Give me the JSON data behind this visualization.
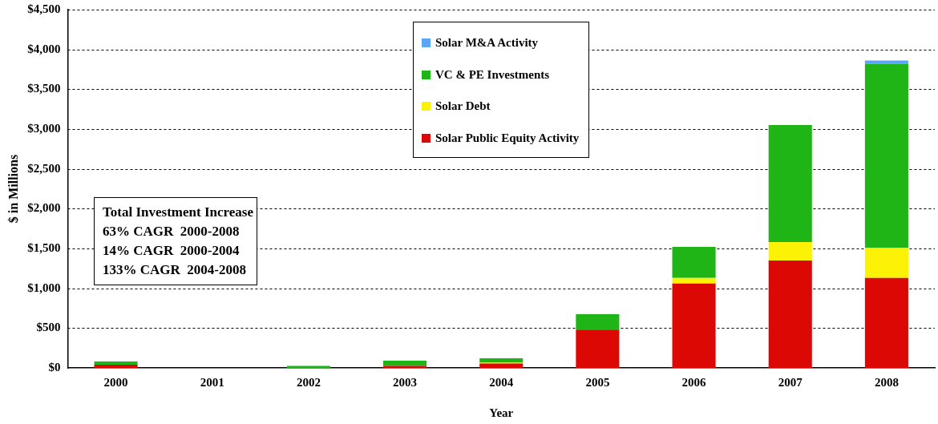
{
  "chart_data": {
    "type": "bar",
    "stacked": true,
    "xlabel": "Year",
    "ylabel": "$ in Millions",
    "categories": [
      "2000",
      "2001",
      "2002",
      "2003",
      "2004",
      "2005",
      "2006",
      "2007",
      "2008"
    ],
    "series": [
      {
        "name": "Solar Public Equity Activity",
        "color": "#dc0804",
        "values": [
          40,
          0,
          0,
          25,
          55,
          480,
          1060,
          1350,
          1130
        ]
      },
      {
        "name": "Solar Debt",
        "color": "#fbf205",
        "values": [
          0,
          0,
          0,
          0,
          10,
          0,
          70,
          230,
          380
        ]
      },
      {
        "name": "VC & PE Investments",
        "color": "#1fb517",
        "values": [
          40,
          0,
          25,
          65,
          55,
          195,
          390,
          1470,
          2310
        ]
      },
      {
        "name": "Solar M&A Activity",
        "color": "#5aa5f5",
        "values": [
          0,
          0,
          0,
          0,
          0,
          0,
          0,
          0,
          40
        ]
      }
    ],
    "ylim": [
      0,
      4500
    ],
    "yticks": [
      {
        "value": 0,
        "label": "$0"
      },
      {
        "value": 500,
        "label": "$500"
      },
      {
        "value": 1000,
        "label": "$1,000"
      },
      {
        "value": 1500,
        "label": "$1,500"
      },
      {
        "value": 2000,
        "label": "$2,000"
      },
      {
        "value": 2500,
        "label": "$2,500"
      },
      {
        "value": 3000,
        "label": "$3,000"
      },
      {
        "value": 3500,
        "label": "$3,500"
      },
      {
        "value": 4000,
        "label": "$4,000"
      },
      {
        "value": 4500,
        "label": "$4,500"
      }
    ],
    "grid": "y",
    "legend": "top",
    "annotations": [
      "Total Investment Increase",
      "63% CAGR  2000-2008",
      "14% CAGR  2000-2004",
      "133% CAGR  2004-2008"
    ]
  }
}
